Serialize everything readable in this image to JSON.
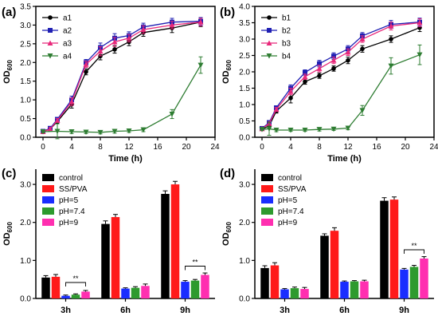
{
  "panels": [
    {
      "label": "(a)",
      "type": "line",
      "xlabel": "Time (h)",
      "ylabel": "OD",
      "ylabel_sub": "600",
      "xlim": [
        -1,
        24
      ],
      "ylim": [
        0,
        3.5
      ],
      "xticks": [
        "0",
        "4",
        "8",
        "12",
        "16",
        "20",
        "24"
      ],
      "yticks": [
        "0.0",
        "0.5",
        "1.0",
        "1.5",
        "2.0",
        "2.5",
        "3.0",
        "3.5"
      ],
      "legend": "top-left",
      "series": [
        {
          "name": "a1",
          "color": "#000000",
          "marker": "circle",
          "x": [
            0,
            1,
            2,
            4,
            6,
            8,
            10,
            12,
            14,
            18,
            22
          ],
          "y": [
            0.15,
            0.22,
            0.42,
            0.88,
            1.75,
            2.17,
            2.35,
            2.55,
            2.8,
            2.92,
            3.08
          ],
          "err": [
            0.03,
            0.04,
            0.05,
            0.1,
            0.08,
            0.1,
            0.1,
            0.1,
            0.1,
            0.12,
            0.12
          ]
        },
        {
          "name": "a2",
          "color": "#1f1fb3",
          "marker": "square",
          "x": [
            0,
            1,
            2,
            4,
            6,
            8,
            10,
            12,
            14,
            18,
            22
          ],
          "y": [
            0.16,
            0.24,
            0.48,
            1.0,
            2.0,
            2.4,
            2.65,
            2.72,
            2.95,
            3.08,
            3.1
          ],
          "err": [
            0.03,
            0.04,
            0.05,
            0.1,
            0.08,
            0.12,
            0.12,
            0.1,
            0.1,
            0.1,
            0.1
          ]
        },
        {
          "name": "a3",
          "color": "#e8287a",
          "marker": "triangle",
          "x": [
            0,
            1,
            2,
            4,
            6,
            8,
            10,
            12,
            14,
            18,
            22
          ],
          "y": [
            0.15,
            0.22,
            0.45,
            0.95,
            1.95,
            2.3,
            2.55,
            2.65,
            2.88,
            3.0,
            3.08
          ],
          "err": [
            0.03,
            0.04,
            0.05,
            0.1,
            0.08,
            0.12,
            0.12,
            0.1,
            0.1,
            0.1,
            0.1
          ]
        },
        {
          "name": "a4",
          "color": "#2e7d32",
          "marker": "triangle-down",
          "x": [
            0,
            2,
            4,
            6,
            8,
            10,
            12,
            14,
            18,
            22
          ],
          "y": [
            0.15,
            0.16,
            0.15,
            0.14,
            0.13,
            0.16,
            0.17,
            0.2,
            0.62,
            1.93
          ],
          "err": [
            0.03,
            0.2,
            0.05,
            0.04,
            0.04,
            0.05,
            0.04,
            0.05,
            0.12,
            0.22
          ]
        }
      ]
    },
    {
      "label": "(b)",
      "type": "line",
      "xlabel": "Time (h)",
      "ylabel": "OD",
      "ylabel_sub": "600",
      "xlim": [
        -1,
        24
      ],
      "ylim": [
        0,
        4.0
      ],
      "xticks": [
        "0",
        "4",
        "8",
        "12",
        "16",
        "20",
        "24"
      ],
      "yticks": [
        "0.0",
        "0.5",
        "1.0",
        "1.5",
        "2.0",
        "2.5",
        "3.0",
        "3.5",
        "4.0"
      ],
      "legend": "top-left",
      "series": [
        {
          "name": "b1",
          "color": "#000000",
          "marker": "circle",
          "x": [
            0,
            1,
            2,
            4,
            6,
            8,
            10,
            12,
            14,
            18,
            22
          ],
          "y": [
            0.25,
            0.35,
            0.8,
            1.2,
            1.7,
            1.88,
            2.1,
            2.35,
            2.7,
            3.0,
            3.35
          ],
          "err": [
            0.03,
            0.05,
            0.06,
            0.15,
            0.08,
            0.08,
            0.08,
            0.1,
            0.1,
            0.1,
            0.12
          ]
        },
        {
          "name": "b2",
          "color": "#1f1fb3",
          "marker": "square",
          "x": [
            0,
            1,
            2,
            4,
            6,
            8,
            10,
            12,
            14,
            18,
            22
          ],
          "y": [
            0.27,
            0.45,
            0.9,
            1.5,
            1.98,
            2.25,
            2.48,
            2.7,
            3.1,
            3.45,
            3.52
          ],
          "err": [
            0.03,
            0.05,
            0.06,
            0.1,
            0.08,
            0.1,
            0.1,
            0.1,
            0.1,
            0.12,
            0.12
          ]
        },
        {
          "name": "b3",
          "color": "#e8287a",
          "marker": "triangle",
          "x": [
            0,
            1,
            2,
            4,
            6,
            8,
            10,
            12,
            14,
            18,
            22
          ],
          "y": [
            0.26,
            0.42,
            0.85,
            1.4,
            1.85,
            2.1,
            2.35,
            2.6,
            3.0,
            3.4,
            3.5
          ],
          "err": [
            0.03,
            0.05,
            0.06,
            0.1,
            0.08,
            0.1,
            0.1,
            0.1,
            0.1,
            0.12,
            0.12
          ]
        },
        {
          "name": "b4",
          "color": "#2e7d32",
          "marker": "triangle-down",
          "x": [
            0,
            1,
            2,
            4,
            6,
            8,
            10,
            12,
            14,
            18,
            22
          ],
          "y": [
            0.24,
            0.26,
            0.22,
            0.22,
            0.22,
            0.24,
            0.25,
            0.28,
            0.82,
            2.18,
            2.52
          ],
          "err": [
            0.03,
            0.2,
            0.05,
            0.04,
            0.04,
            0.05,
            0.04,
            0.05,
            0.15,
            0.25,
            0.3
          ]
        }
      ]
    },
    {
      "label": "(c)",
      "type": "bar",
      "ylabel": "OD",
      "ylabel_sub": "600",
      "ylim": [
        0,
        3.4
      ],
      "yticks": [
        "0.0",
        "1.0",
        "2.0",
        "3.0"
      ],
      "yticks_values": [
        0,
        1,
        2,
        3
      ],
      "categories": [
        "3h",
        "6h",
        "9h"
      ],
      "legend": "top-left",
      "significance": [
        {
          "category": "3h",
          "from": 2,
          "to": 4,
          "label": "**",
          "y": 0.42
        },
        {
          "category": "9h",
          "from": 2,
          "to": 4,
          "label": "**",
          "y": 0.85
        }
      ],
      "series": [
        {
          "name": "control",
          "color": "#000000",
          "values": [
            0.55,
            1.96,
            2.75
          ],
          "err": [
            0.05,
            0.08,
            0.08
          ]
        },
        {
          "name": "SS/PVA",
          "color": "#ff1a1a",
          "values": [
            0.57,
            2.14,
            3.0
          ],
          "err": [
            0.06,
            0.07,
            0.08
          ]
        },
        {
          "name": "pH=5",
          "color": "#1a2dff",
          "values": [
            0.07,
            0.26,
            0.44
          ],
          "err": [
            0.02,
            0.02,
            0.03
          ]
        },
        {
          "name": "pH=7.4",
          "color": "#2e9a2e",
          "values": [
            0.1,
            0.28,
            0.47
          ],
          "err": [
            0.02,
            0.03,
            0.03
          ]
        },
        {
          "name": "pH=9",
          "color": "#ff2fb0",
          "values": [
            0.18,
            0.33,
            0.62
          ],
          "err": [
            0.03,
            0.05,
            0.05
          ]
        }
      ]
    },
    {
      "label": "(d)",
      "type": "bar",
      "ylabel": "OD",
      "ylabel_sub": "600",
      "ylim": [
        0,
        3.4
      ],
      "yticks": [
        "0.0",
        "1.0",
        "2.0",
        "3.0"
      ],
      "yticks_values": [
        0,
        1,
        2,
        3
      ],
      "categories": [
        "3h",
        "6h",
        "9h"
      ],
      "legend": "top-left",
      "significance": [
        {
          "category": "9h",
          "from": 2,
          "to": 4,
          "label": "**",
          "y": 1.28
        }
      ],
      "series": [
        {
          "name": "control",
          "color": "#000000",
          "values": [
            0.8,
            1.65,
            2.57
          ],
          "err": [
            0.06,
            0.05,
            0.08
          ]
        },
        {
          "name": "SS/PVA",
          "color": "#ff1a1a",
          "values": [
            0.87,
            1.78,
            2.6
          ],
          "err": [
            0.07,
            0.08,
            0.07
          ]
        },
        {
          "name": "pH=5",
          "color": "#1a2dff",
          "values": [
            0.24,
            0.44,
            0.76
          ],
          "err": [
            0.02,
            0.02,
            0.03
          ]
        },
        {
          "name": "pH=7.4",
          "color": "#2e9a2e",
          "values": [
            0.27,
            0.45,
            0.83
          ],
          "err": [
            0.03,
            0.02,
            0.04
          ]
        },
        {
          "name": "pH=9",
          "color": "#ff2fb0",
          "values": [
            0.25,
            0.45,
            1.05
          ],
          "err": [
            0.04,
            0.03,
            0.05
          ]
        }
      ]
    }
  ]
}
